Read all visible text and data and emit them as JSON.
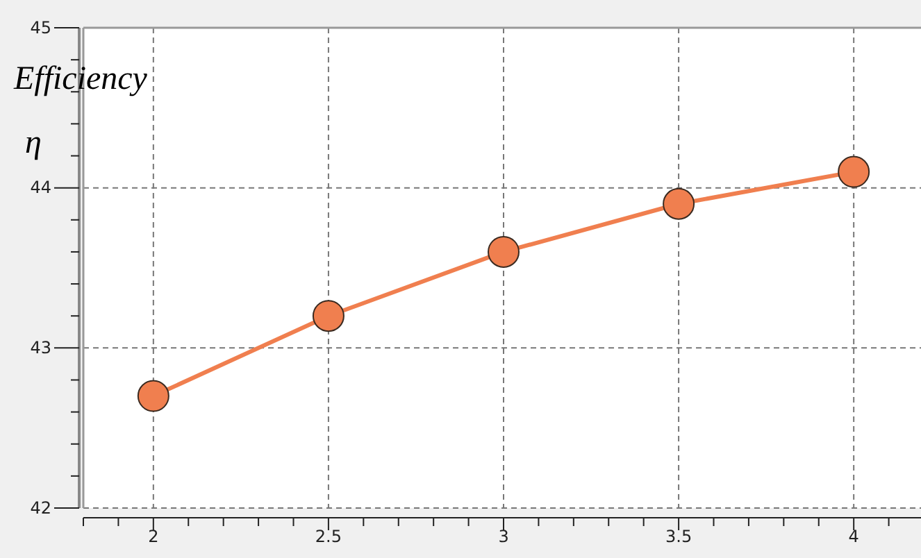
{
  "chart_data": {
    "type": "line",
    "ylabel": "Efficiency η",
    "x": [
      2,
      2.5,
      3,
      3.5,
      4
    ],
    "series": [
      {
        "color": "#f07f4f",
        "values": [
          42.7,
          43.2,
          43.6,
          43.9,
          44.1
        ]
      }
    ],
    "xlim": [
      1.8,
      4.2
    ],
    "ylim": [
      42,
      45
    ],
    "xticks": [
      {
        "value": 1.8,
        "label": null
      },
      {
        "value": 1.9,
        "label": null
      },
      2,
      {
        "value": 2.1,
        "label": null
      },
      {
        "value": 2.2,
        "label": null
      },
      {
        "value": 2.3,
        "label": null
      },
      {
        "value": 2.4,
        "label": null
      },
      2.5,
      {
        "value": 2.6,
        "label": null
      },
      {
        "value": 2.7,
        "label": null
      },
      {
        "value": 2.8,
        "label": null
      },
      {
        "value": 2.9,
        "label": null
      },
      3,
      {
        "value": 3.1,
        "label": null
      },
      {
        "value": 3.2,
        "label": null
      },
      {
        "value": 3.3,
        "label": null
      },
      {
        "value": 3.4,
        "label": null
      },
      3.5,
      {
        "value": 3.6,
        "label": null
      },
      {
        "value": 3.7,
        "label": null
      },
      {
        "value": 3.8,
        "label": null
      },
      {
        "value": 3.9,
        "label": null
      },
      4,
      {
        "value": 4.1,
        "label": null
      }
    ],
    "yticks": [
      42,
      {
        "value": 42.2,
        "label": null
      },
      {
        "value": 42.4,
        "label": null
      },
      {
        "value": 42.6,
        "label": null
      },
      {
        "value": 42.8,
        "label": null
      },
      43,
      {
        "value": 43.2,
        "label": null
      },
      {
        "value": 43.4,
        "label": null
      },
      {
        "value": 43.6,
        "label": null
      },
      {
        "value": 43.8,
        "label": null
      },
      44,
      {
        "value": 44.2,
        "label": null
      },
      {
        "value": 44.4,
        "label": null
      },
      {
        "value": 44.6,
        "label": null
      },
      {
        "value": 44.8,
        "label": null
      },
      45
    ],
    "grid": true,
    "marker": "circle",
    "line_style": "solid"
  }
}
